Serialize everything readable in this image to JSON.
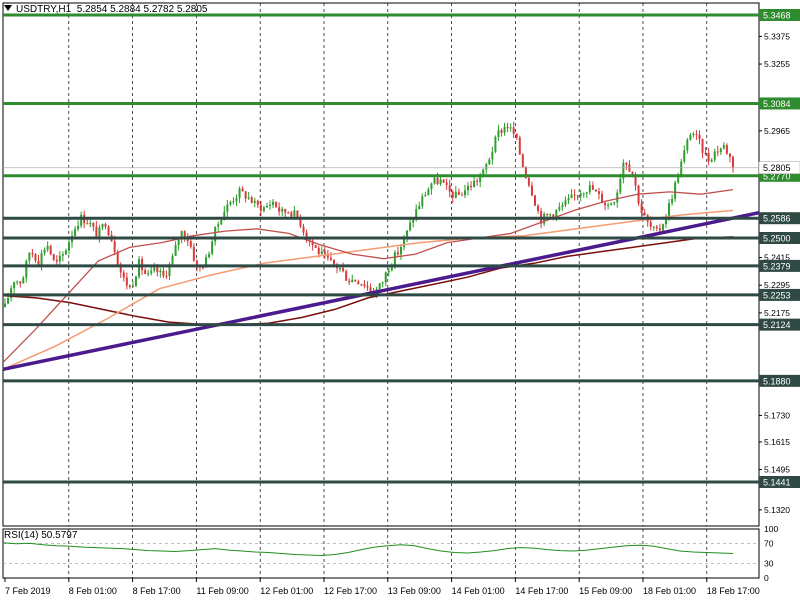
{
  "header": {
    "symbol": "USDTRY,H1",
    "open": "5.2854",
    "high": "5.2884",
    "low": "5.2782",
    "close": "5.2805"
  },
  "rsi_header": {
    "name": "RSI(14)",
    "value": "50.5797"
  },
  "chart_data": {
    "type": "candlestick",
    "symbol": "USDTRY",
    "timeframe": "H1",
    "ylim": [
      5.125,
      5.352
    ],
    "y_ticks": [
      "5.3375",
      "5.3255",
      "5.2965",
      "5.2415",
      "5.2295",
      "5.2175",
      "5.1730",
      "5.1615",
      "5.1495",
      "5.1320"
    ],
    "x_labels": [
      "7 Feb 2019",
      "8 Feb 01:00",
      "8 Feb 17:00",
      "11 Feb 09:00",
      "12 Feb 01:00",
      "12 Feb 17:00",
      "13 Feb 09:00",
      "14 Feb 01:00",
      "14 Feb 17:00",
      "15 Feb 09:00",
      "18 Feb 01:00",
      "18 Feb 17:00"
    ],
    "current_price": "5.2805",
    "horizontal_levels": [
      "5.3468",
      "5.3084",
      "5.2770",
      "5.2586",
      "5.2500",
      "5.2379",
      "5.2253",
      "5.2124",
      "5.1880",
      "5.1441"
    ],
    "trendline": {
      "start": 5.193,
      "end": 5.261
    },
    "close_path": [
      5.22,
      5.232,
      5.231,
      5.245,
      5.24,
      5.248,
      5.238,
      5.243,
      5.252,
      5.259,
      5.257,
      5.251,
      5.257,
      5.247,
      5.233,
      5.228,
      5.239,
      5.233,
      5.236,
      5.233,
      5.241,
      5.253,
      5.249,
      5.236,
      5.24,
      5.252,
      5.261,
      5.266,
      5.27,
      5.268,
      5.264,
      5.263,
      5.266,
      5.261,
      5.262,
      5.259,
      5.251,
      5.246,
      5.242,
      5.239,
      5.237,
      5.232,
      5.232,
      5.23,
      5.226,
      5.23,
      5.239,
      5.244,
      5.252,
      5.261,
      5.268,
      5.274,
      5.275,
      5.27,
      5.268,
      5.271,
      5.274,
      5.277,
      5.286,
      5.296,
      5.299,
      5.294,
      5.28,
      5.27,
      5.258,
      5.26,
      5.262,
      5.265,
      5.268,
      5.271,
      5.272,
      5.268,
      5.264,
      5.268,
      5.285,
      5.278,
      5.262,
      5.255,
      5.252,
      5.26,
      5.272,
      5.285,
      5.297,
      5.291,
      5.284,
      5.288,
      5.29,
      5.282
    ],
    "ma_slow": [
      5.225,
      5.224,
      5.222,
      5.219,
      5.216,
      5.2135,
      5.2125,
      5.2124,
      5.213,
      5.2155,
      5.219,
      5.224,
      5.227,
      5.23,
      5.233,
      5.237,
      5.239,
      5.242,
      5.244,
      5.246,
      5.248,
      5.25,
      5.2505
    ],
    "ma_mid": [
      5.193,
      5.203,
      5.215,
      5.228,
      5.234,
      5.239,
      5.242,
      5.245,
      5.248,
      5.25,
      5.251,
      5.254,
      5.257,
      5.26,
      5.262
    ],
    "ma_fast": [
      5.196,
      5.21,
      5.225,
      5.24,
      5.246,
      5.248,
      5.251,
      5.253,
      5.254,
      5.252,
      5.247,
      5.243,
      5.241,
      5.243,
      5.248,
      5.25,
      5.252,
      5.257,
      5.262,
      5.266,
      5.269,
      5.27,
      5.269,
      5.271
    ],
    "rsi": {
      "ylim": [
        0,
        100
      ],
      "levels": [
        "70",
        "30"
      ],
      "tick_labels": [
        "100",
        "70",
        "30",
        "0"
      ],
      "values": [
        72,
        70,
        71,
        68,
        66,
        65,
        63,
        62,
        61,
        60,
        58,
        56,
        55,
        54,
        56,
        58,
        60,
        57,
        55,
        53,
        52,
        50,
        48,
        47,
        46,
        48,
        52,
        58,
        63,
        66,
        68,
        66,
        60,
        55,
        52,
        51,
        53,
        56,
        60,
        62,
        61,
        58,
        56,
        55,
        57,
        60,
        63,
        66,
        67,
        65,
        60,
        55,
        53,
        52,
        51,
        50
      ]
    },
    "colors": {
      "bull": "#2e9e2e",
      "bear": "#d63a3a",
      "level_green": "#2e8b2e",
      "level_dark": "#2f4a44",
      "trendline": "#4b1a8c",
      "ma_slow": "#7a0e0e",
      "ma_mid": "#f39b72",
      "ma_fast": "#c0504d",
      "rsi_line": "#1f8f1f",
      "price_tag": "#2e8b2e"
    }
  }
}
